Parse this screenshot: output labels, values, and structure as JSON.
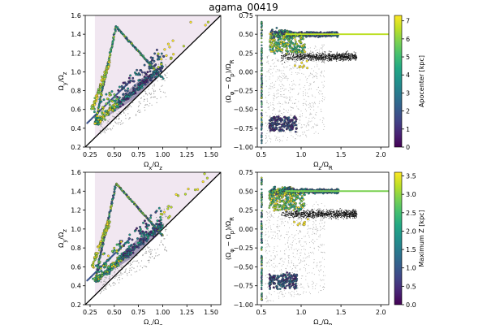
{
  "figure": {
    "title": "agama_00419"
  },
  "colors": {
    "viridis": [
      "#440154",
      "#482475",
      "#414487",
      "#355f8d",
      "#2a788e",
      "#21918c",
      "#22a884",
      "#44bf70",
      "#7ad151",
      "#bddf26",
      "#fde725"
    ],
    "shade_fill": "#efe3ee",
    "black": "#000000"
  },
  "chart_data": [
    {
      "type": "scatter",
      "panel": "top-left",
      "xlabel": "Ω_x/Ω_z",
      "ylabel": "Ω_y/Ω_z",
      "xlim": [
        0.2,
        1.6
      ],
      "ylim": [
        0.2,
        1.6
      ],
      "xticks": [
        "0.25",
        "0.50",
        "0.75",
        "1.00",
        "1.25",
        "1.50"
      ],
      "yticks": [
        "0.2",
        "0.4",
        "0.6",
        "0.8",
        "1.0",
        "1.2",
        "1.4",
        "1.6"
      ],
      "diagonal": true
    },
    {
      "type": "scatter",
      "panel": "top-right",
      "xlabel": "Ω_z/Ω_R",
      "ylabel": "(Ω_φ − Ω_p)/Ω_R",
      "xlim": [
        0.45,
        2.1
      ],
      "ylim": [
        -1.0,
        0.75
      ],
      "xticks": [
        "0.5",
        "1.0",
        "1.5",
        "2.0"
      ],
      "yticks": [
        "−1.00",
        "−0.75",
        "−0.50",
        "−0.25",
        "0.00",
        "0.25",
        "0.50",
        "0.75"
      ],
      "colorbar": {
        "label": "Apocenter [kpc]",
        "range": [
          0,
          7.3
        ],
        "ticks": [
          "0",
          "1",
          "2",
          "3",
          "4",
          "5",
          "6",
          "7"
        ]
      }
    },
    {
      "type": "scatter",
      "panel": "bottom-left",
      "xlabel": "Ω_x/Ω_z",
      "ylabel": "Ω_y/Ω_z",
      "xlim": [
        0.2,
        1.6
      ],
      "ylim": [
        0.2,
        1.6
      ],
      "xticks": [
        "0.25",
        "0.50",
        "0.75",
        "1.00",
        "1.25",
        "1.50"
      ],
      "yticks": [
        "0.2",
        "0.4",
        "0.6",
        "0.8",
        "1.0",
        "1.2",
        "1.4",
        "1.6"
      ],
      "diagonal": true
    },
    {
      "type": "scatter",
      "panel": "bottom-right",
      "xlabel": "Ω_z/Ω_R",
      "ylabel": "(Ω_φ − Ω_p)/Ω_R",
      "xlim": [
        0.45,
        2.1
      ],
      "ylim": [
        -1.0,
        0.75
      ],
      "xticks": [
        "0.5",
        "1.0",
        "1.5",
        "2.0"
      ],
      "yticks": [
        "−1.00",
        "−0.75",
        "−0.50",
        "−0.25",
        "0.00",
        "0.25",
        "0.50",
        "0.75"
      ],
      "colorbar": {
        "label": "Maximum Z [kpc]",
        "range": [
          0,
          3.6
        ],
        "ticks": [
          "0.0",
          "0.5",
          "1.0",
          "1.5",
          "2.0",
          "2.5",
          "3.0",
          "3.5"
        ]
      }
    }
  ]
}
